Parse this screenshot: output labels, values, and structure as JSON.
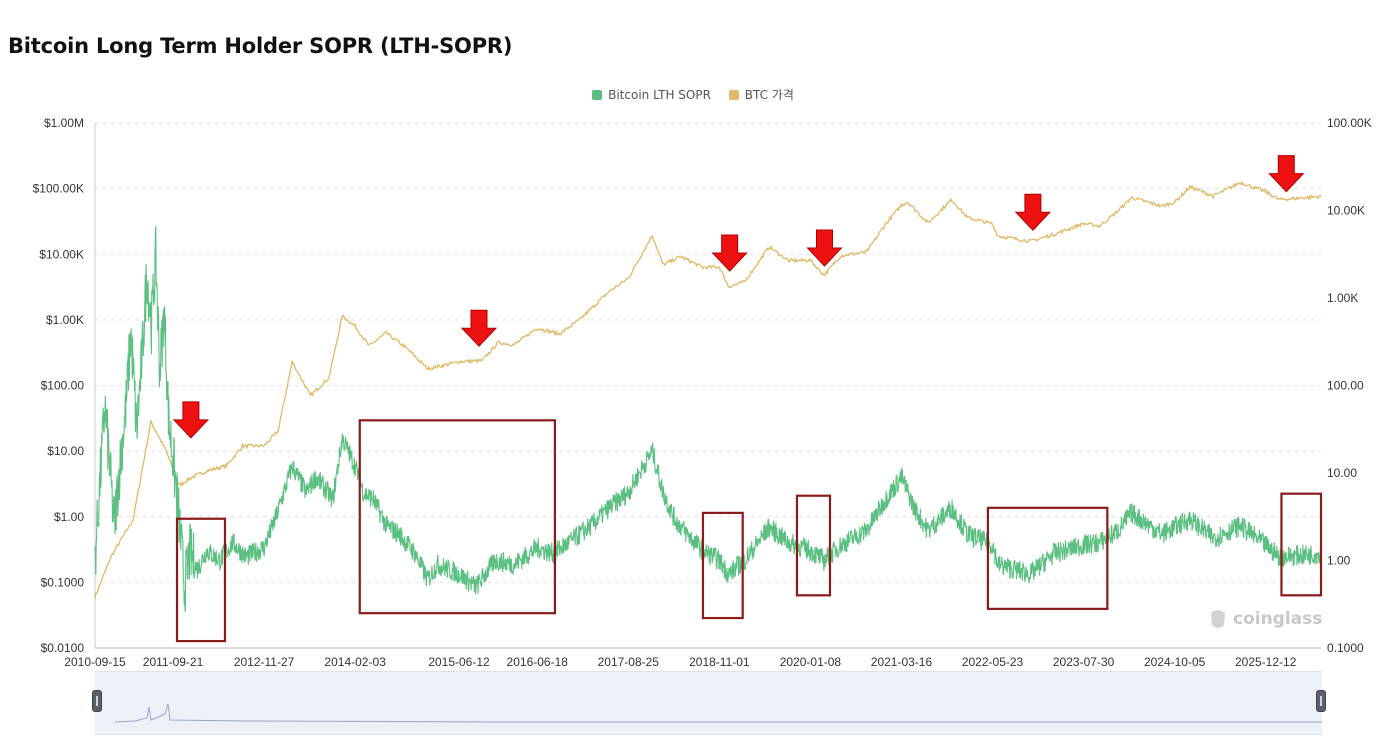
{
  "page": {
    "title": "Bitcoin Long Term Holder SOPR (LTH-SOPR)",
    "watermark": "coinglass"
  },
  "legend": [
    {
      "label": "Bitcoin LTH SOPR",
      "color": "#5cbf82"
    },
    {
      "label": "BTC 가격",
      "color": "#dfb965"
    }
  ],
  "colors": {
    "sopr": "#5cbf82",
    "price": "#dfb965",
    "annotation_arrow": "#ee1111",
    "annotation_box": "#8b1a1a",
    "grid": "#e3e3e3"
  },
  "chart_data": {
    "type": "line",
    "title": "Bitcoin Long Term Holder SOPR (LTH-SOPR)",
    "x_tick_labels": [
      "2010-09-15",
      "2011-09-21",
      "2012-11-27",
      "2014-02-03",
      "2015-06-12",
      "2016-06-18",
      "2017-08-25",
      "2018-11-01",
      "2020-01-08",
      "2021-03-16",
      "2022-05-23",
      "2023-07-30",
      "2024-10-05",
      "2025-12-12"
    ],
    "xlim": [
      "2010-09-15",
      "2026-09-01"
    ],
    "y_left": {
      "scale": "log",
      "range": [
        0.01,
        1000000
      ],
      "tick_labels": [
        "$0.0100",
        "$0.1000",
        "$1.00",
        "$10.00",
        "$100.00",
        "$1.00K",
        "$10.00K",
        "$100.00K",
        "$1.00M"
      ],
      "tick_values": [
        0.01,
        0.1,
        1,
        10,
        100,
        1000,
        10000,
        100000,
        1000000
      ]
    },
    "y_right": {
      "scale": "log",
      "range": [
        0.1,
        100000
      ],
      "tick_labels": [
        "0.1000",
        "1.00",
        "10.00",
        "100.00",
        "1.00K",
        "10.00K",
        "100.00K"
      ],
      "tick_values": [
        0.1,
        1,
        10,
        100,
        1000,
        10000,
        100000
      ]
    },
    "grid": true,
    "legend_position": "top-center",
    "series": [
      {
        "name": "BTC 가격",
        "axis": "left",
        "points": [
          [
            "2010-09-15",
            0.06
          ],
          [
            "2010-12-01",
            0.25
          ],
          [
            "2011-03-15",
            0.9
          ],
          [
            "2011-06-08",
            28
          ],
          [
            "2011-08-20",
            10
          ],
          [
            "2011-10-20",
            3.0
          ],
          [
            "2011-12-20",
            4
          ],
          [
            "2012-03-01",
            5
          ],
          [
            "2012-06-01",
            6
          ],
          [
            "2012-08-17",
            12
          ],
          [
            "2012-11-27",
            12
          ],
          [
            "2013-02-01",
            20
          ],
          [
            "2013-04-10",
            230
          ],
          [
            "2013-07-05",
            70
          ],
          [
            "2013-10-01",
            130
          ],
          [
            "2013-12-04",
            1150
          ],
          [
            "2014-02-03",
            800
          ],
          [
            "2014-04-10",
            400
          ],
          [
            "2014-07-01",
            630
          ],
          [
            "2014-10-01",
            380
          ],
          [
            "2015-01-14",
            180
          ],
          [
            "2015-06-12",
            230
          ],
          [
            "2015-10-01",
            240
          ],
          [
            "2015-12-15",
            450
          ],
          [
            "2016-03-01",
            420
          ],
          [
            "2016-06-18",
            750
          ],
          [
            "2016-10-01",
            610
          ],
          [
            "2017-01-05",
            1000
          ],
          [
            "2017-05-25",
            2700
          ],
          [
            "2017-08-25",
            4300
          ],
          [
            "2017-12-17",
            19500
          ],
          [
            "2018-02-06",
            6900
          ],
          [
            "2018-05-01",
            9200
          ],
          [
            "2018-08-15",
            6300
          ],
          [
            "2018-11-01",
            6400
          ],
          [
            "2018-12-15",
            3200
          ],
          [
            "2019-03-01",
            3800
          ],
          [
            "2019-06-26",
            13000
          ],
          [
            "2019-09-25",
            8000
          ],
          [
            "2020-01-08",
            8100
          ],
          [
            "2020-03-12",
            4800
          ],
          [
            "2020-06-01",
            9500
          ],
          [
            "2020-10-01",
            10800
          ],
          [
            "2020-12-31",
            29000
          ],
          [
            "2021-03-16",
            56000
          ],
          [
            "2021-04-14",
            63000
          ],
          [
            "2021-07-20",
            30000
          ],
          [
            "2021-11-10",
            68000
          ],
          [
            "2022-01-24",
            36000
          ],
          [
            "2022-05-23",
            29000
          ],
          [
            "2022-06-18",
            19000
          ],
          [
            "2022-11-21",
            15800
          ],
          [
            "2023-03-10",
            20000
          ],
          [
            "2023-07-30",
            29300
          ],
          [
            "2023-10-15",
            27000
          ],
          [
            "2024-01-10",
            46000
          ],
          [
            "2024-03-14",
            73000
          ],
          [
            "2024-08-05",
            54000
          ],
          [
            "2024-10-05",
            62000
          ],
          [
            "2024-12-17",
            106000
          ],
          [
            "2025-04-07",
            77000
          ],
          [
            "2025-08-14",
            124000
          ],
          [
            "2025-12-12",
            90000
          ],
          [
            "2026-02-15",
            68000
          ],
          [
            "2026-09-01",
            76000
          ]
        ]
      },
      {
        "name": "Bitcoin LTH SOPR",
        "axis": "right",
        "points": [
          [
            "2010-09-15",
            1.0
          ],
          [
            "2010-11-01",
            60
          ],
          [
            "2010-12-15",
            2.5
          ],
          [
            "2011-01-15",
            15
          ],
          [
            "2011-02-10",
            60
          ],
          [
            "2011-03-05",
            400
          ],
          [
            "2011-04-01",
            30
          ],
          [
            "2011-05-01",
            300
          ],
          [
            "2011-05-20",
            2000
          ],
          [
            "2011-06-10",
            500
          ],
          [
            "2011-07-01",
            3000
          ],
          [
            "2011-07-20",
            150
          ],
          [
            "2011-08-10",
            700
          ],
          [
            "2011-09-01",
            40
          ],
          [
            "2011-09-21",
            15
          ],
          [
            "2011-10-20",
            3
          ],
          [
            "2011-11-15",
            0.5
          ],
          [
            "2011-12-10",
            1.2
          ],
          [
            "2012-01-15",
            0.8
          ],
          [
            "2012-03-01",
            1.3
          ],
          [
            "2012-05-01",
            1.0
          ],
          [
            "2012-07-01",
            1.6
          ],
          [
            "2012-09-01",
            1.1
          ],
          [
            "2012-11-27",
            1.4
          ],
          [
            "2013-01-20",
            3.0
          ],
          [
            "2013-04-10",
            12
          ],
          [
            "2013-06-15",
            6
          ],
          [
            "2013-08-01",
            9
          ],
          [
            "2013-10-20",
            5
          ],
          [
            "2013-12-04",
            25
          ],
          [
            "2014-02-03",
            12
          ],
          [
            "2014-03-15",
            6
          ],
          [
            "2014-05-01",
            5
          ],
          [
            "2014-07-01",
            2.5
          ],
          [
            "2014-09-01",
            2.0
          ],
          [
            "2014-11-15",
            1.2
          ],
          [
            "2015-01-14",
            0.6
          ],
          [
            "2015-03-01",
            0.9
          ],
          [
            "2015-06-12",
            0.7
          ],
          [
            "2015-09-01",
            0.5
          ],
          [
            "2015-12-01",
            1.0
          ],
          [
            "2016-03-01",
            0.9
          ],
          [
            "2016-06-18",
            1.4
          ],
          [
            "2016-09-01",
            1.2
          ],
          [
            "2016-12-01",
            1.7
          ],
          [
            "2017-03-01",
            2.5
          ],
          [
            "2017-05-25",
            4
          ],
          [
            "2017-08-25",
            6
          ],
          [
            "2017-12-17",
            18
          ],
          [
            "2018-02-06",
            6
          ],
          [
            "2018-04-01",
            3
          ],
          [
            "2018-06-01",
            2.0
          ],
          [
            "2018-08-15",
            1.3
          ],
          [
            "2018-11-01",
            1.0
          ],
          [
            "2018-12-15",
            0.7
          ],
          [
            "2019-03-01",
            1.0
          ],
          [
            "2019-06-26",
            2.4
          ],
          [
            "2019-09-25",
            1.6
          ],
          [
            "2020-01-08",
            1.3
          ],
          [
            "2020-03-12",
            1.0
          ],
          [
            "2020-06-01",
            1.5
          ],
          [
            "2020-10-01",
            2.2
          ],
          [
            "2020-12-31",
            5
          ],
          [
            "2021-03-16",
            9
          ],
          [
            "2021-05-15",
            4
          ],
          [
            "2021-07-20",
            2.2
          ],
          [
            "2021-11-10",
            4
          ],
          [
            "2022-01-24",
            2.0
          ],
          [
            "2022-05-23",
            1.5
          ],
          [
            "2022-06-18",
            0.9
          ],
          [
            "2022-11-21",
            0.7
          ],
          [
            "2023-03-10",
            1.2
          ],
          [
            "2023-07-30",
            1.5
          ],
          [
            "2023-10-15",
            1.6
          ],
          [
            "2024-01-10",
            2.2
          ],
          [
            "2024-03-14",
            3.5
          ],
          [
            "2024-08-05",
            2.0
          ],
          [
            "2024-10-05",
            2.4
          ],
          [
            "2024-12-17",
            3.0
          ],
          [
            "2025-04-07",
            1.8
          ],
          [
            "2025-08-14",
            2.5
          ],
          [
            "2025-12-12",
            1.5
          ],
          [
            "2026-02-15",
            1.1
          ],
          [
            "2026-09-01",
            1.2
          ]
        ]
      }
    ]
  }
}
